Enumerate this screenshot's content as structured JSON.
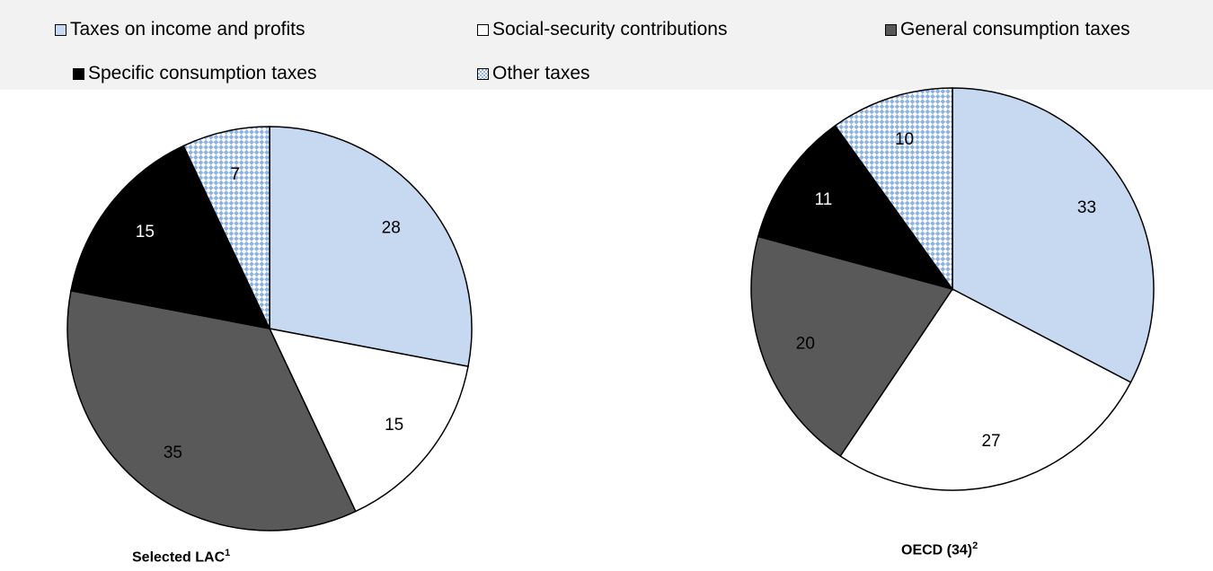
{
  "legend": [
    {
      "label": "Taxes on income and profits",
      "color": "#c6d9f1",
      "pattern": "solid"
    },
    {
      "label": "Social-security contributions",
      "color": "#ffffff",
      "pattern": "solid"
    },
    {
      "label": "General consumption taxes",
      "color": "#595959",
      "pattern": "solid"
    },
    {
      "label": "Specific consumption taxes",
      "color": "#000000",
      "pattern": "solid"
    },
    {
      "label": "Other taxes",
      "color": "#8db3e2",
      "pattern": "checker"
    }
  ],
  "chart_data": [
    {
      "type": "pie",
      "title": "Selected LAC",
      "title_sup": "1",
      "categories": [
        "Taxes on income and profits",
        "Social-security contributions",
        "General consumption taxes",
        "Specific consumption taxes",
        "Other taxes"
      ],
      "values": [
        28,
        15,
        35,
        15,
        7
      ],
      "data_labels": [
        "28",
        "15",
        "35",
        "15",
        "7"
      ]
    },
    {
      "type": "pie",
      "title": "OECD (34)",
      "title_sup": "2",
      "categories": [
        "Taxes on income and profits",
        "Social-security contributions",
        "General consumption taxes",
        "Specific consumption taxes",
        "Other taxes"
      ],
      "values": [
        33,
        27,
        20,
        11,
        10
      ],
      "data_labels": [
        "33",
        "27",
        "20",
        "11",
        "10"
      ]
    }
  ]
}
